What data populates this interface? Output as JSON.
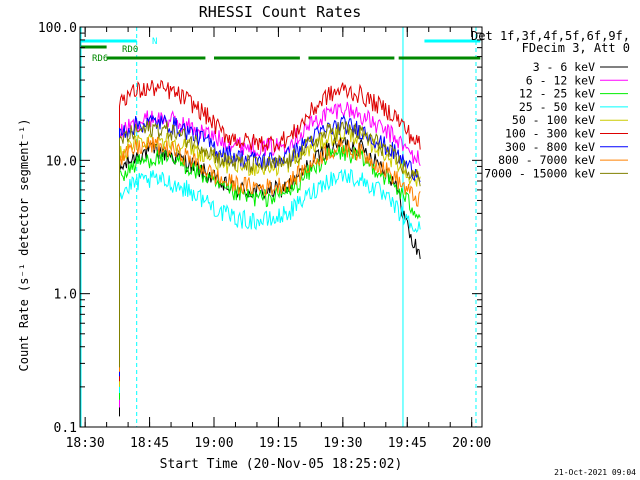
{
  "chart_data": {
    "type": "line",
    "title": "RHESSI Count Rates",
    "xlabel": "Start Time (20-Nov-05 18:25:02)",
    "ylabel": "Count Rate (s⁻¹ detector segment⁻¹)",
    "yscale": "log",
    "ylim": [
      0.1,
      100.0
    ],
    "xlim_minutes": [
      18.48,
      20.04
    ],
    "ytick_labels": [
      "0.1",
      "1.0",
      "10.0",
      "100.0"
    ],
    "yticks": [
      0.1,
      1.0,
      10.0,
      100.0
    ],
    "xtick_labels": [
      "18:30",
      "18:45",
      "19:00",
      "19:15",
      "19:30",
      "19:45",
      "20:00"
    ],
    "legend_header": [
      "Det 1f,3f,4f,5f,6f,9f,",
      "FDecim 3, Att 0"
    ],
    "legend_position": "right",
    "timestamp": "21-Oct-2021 09:04",
    "flags": [
      {
        "label": "N",
        "color": "#00ffff",
        "segments": [
          [
            "18:25",
            "18:42"
          ],
          [
            "19:49",
            "20:02"
          ]
        ]
      },
      {
        "label": "RD0",
        "color": "#008800",
        "segments": [
          [
            "18:25",
            "18:35"
          ]
        ]
      },
      {
        "label": "RD6",
        "color": "#008800",
        "segments": [
          [
            "18:35",
            "18:58"
          ],
          [
            "19:00",
            "19:20"
          ],
          [
            "19:22",
            "19:42"
          ],
          [
            "19:43",
            "20:02"
          ]
        ]
      }
    ],
    "vlines": [
      {
        "time": "18:25",
        "style": "solid",
        "color": "#00ffff"
      },
      {
        "time": "18:42",
        "style": "dashed",
        "color": "#00ffff"
      },
      {
        "time": "19:44",
        "style": "solid",
        "color": "#00ffff"
      },
      {
        "time": "20:01",
        "style": "dashed",
        "color": "#00ffff"
      }
    ],
    "x_times": [
      "18:38",
      "18:42",
      "18:46",
      "18:50",
      "18:54",
      "18:58",
      "19:02",
      "19:06",
      "19:10",
      "19:14",
      "19:18",
      "19:22",
      "19:26",
      "19:30",
      "19:34",
      "19:38",
      "19:42",
      "19:46",
      "19:48"
    ],
    "series": [
      {
        "name": "3 - 6 keV",
        "color": "#000000",
        "values": [
          8.5,
          11.0,
          12.0,
          11.0,
          9.5,
          8.0,
          6.5,
          6.0,
          5.8,
          5.9,
          6.5,
          9.0,
          12.0,
          13.5,
          12.5,
          10.0,
          7.0,
          2.5,
          2.0
        ]
      },
      {
        "name": "6 - 12 keV",
        "color": "#ff00ff",
        "values": [
          16.0,
          19.0,
          21.0,
          20.0,
          18.0,
          16.0,
          14.0,
          13.0,
          12.5,
          12.5,
          14.0,
          18.0,
          22.0,
          25.0,
          22.0,
          18.0,
          15.0,
          11.0,
          10.0
        ]
      },
      {
        "name": "12 - 25 keV",
        "color": "#00ee00",
        "values": [
          7.5,
          9.5,
          10.5,
          10.0,
          9.0,
          7.5,
          6.0,
          5.5,
          5.2,
          5.3,
          6.0,
          8.0,
          10.5,
          11.5,
          10.5,
          8.5,
          6.5,
          4.5,
          4.0
        ]
      },
      {
        "name": "25 - 50 keV",
        "color": "#00ffff",
        "values": [
          5.5,
          6.8,
          7.2,
          6.8,
          6.0,
          5.0,
          4.0,
          3.6,
          3.5,
          3.6,
          4.2,
          5.5,
          7.0,
          7.8,
          7.2,
          6.0,
          4.5,
          3.2,
          3.0
        ]
      },
      {
        "name": "50 - 100 keV",
        "color": "#cccc00",
        "values": [
          11.0,
          13.5,
          14.5,
          14.0,
          12.5,
          11.0,
          9.5,
          9.0,
          8.8,
          8.8,
          9.5,
          12.0,
          14.5,
          16.0,
          15.0,
          12.5,
          10.0,
          7.5,
          7.0
        ]
      },
      {
        "name": "100 - 300 keV",
        "color": "#dd0000",
        "values": [
          29.0,
          33.0,
          35.0,
          33.0,
          28.0,
          22.0,
          16.0,
          14.0,
          13.5,
          13.5,
          15.0,
          22.0,
          30.0,
          34.0,
          31.0,
          26.0,
          22.0,
          15.0,
          13.0
        ]
      },
      {
        "name": "300 - 800 keV",
        "color": "#0000ff",
        "values": [
          16.0,
          18.5,
          19.5,
          18.5,
          16.5,
          14.0,
          11.5,
          10.5,
          10.0,
          10.0,
          11.0,
          14.0,
          17.0,
          18.5,
          17.0,
          14.0,
          11.5,
          8.5,
          8.0
        ]
      },
      {
        "name": "800 - 7000 keV",
        "color": "#ff8000",
        "values": [
          10.0,
          12.5,
          13.0,
          12.0,
          10.5,
          8.5,
          7.0,
          6.5,
          6.3,
          6.3,
          7.0,
          9.0,
          11.5,
          12.5,
          11.5,
          9.5,
          7.5,
          5.5,
          5.0
        ]
      },
      {
        "name": "7000 - 15000 keV",
        "color": "#808000",
        "values": [
          14.0,
          16.5,
          17.5,
          16.5,
          14.5,
          12.5,
          10.0,
          9.5,
          9.2,
          9.2,
          10.0,
          13.0,
          16.0,
          17.5,
          16.0,
          13.5,
          10.5,
          7.8,
          7.3
        ]
      }
    ]
  }
}
